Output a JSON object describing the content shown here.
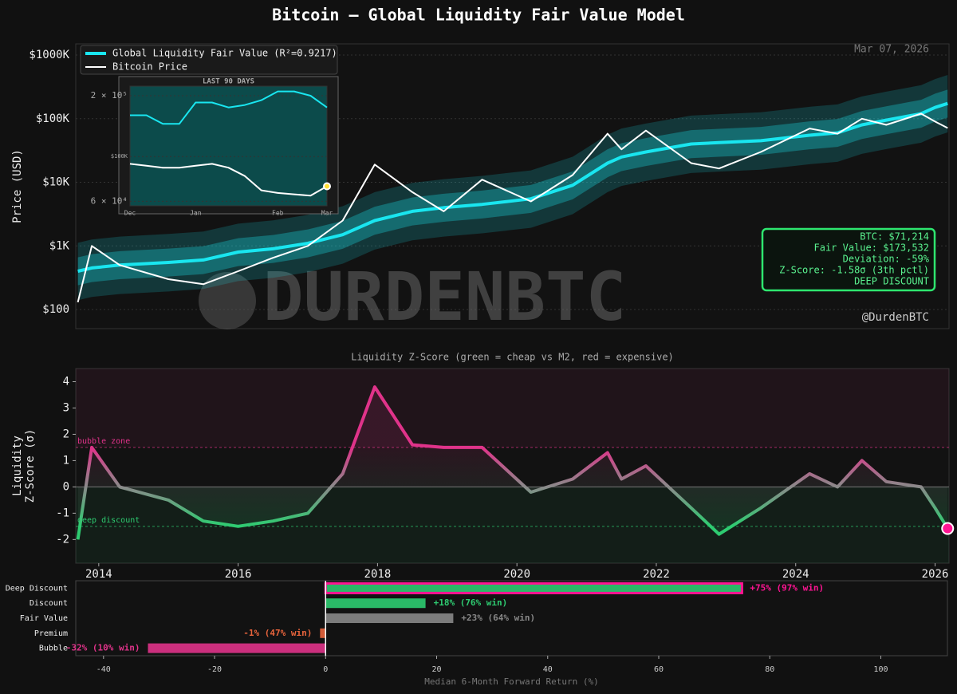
{
  "title": "Bitcoin — Global Liquidity Fair Value Model",
  "annotations": {
    "date": "Mar 07, 2026",
    "watermark": "DURDENBTC",
    "handle": "@DurdenBTC",
    "info_box": [
      "BTC: $71,214",
      "Fair Value: $173,532",
      "Deviation: -59%",
      "Z-Score: -1.58σ  (3th pctl)",
      "DEEP DISCOUNT"
    ]
  },
  "chart_data": [
    {
      "type": "line",
      "log_y": true,
      "ylabel": "Price (USD)",
      "grid": true,
      "bands": true,
      "legend": "upper left",
      "x": [
        2013.7,
        2013.9,
        2014.3,
        2015,
        2015.5,
        2016,
        2016.5,
        2017,
        2017.5,
        2017.96,
        2018.5,
        2018.95,
        2019.5,
        2020.2,
        2020.8,
        2021.3,
        2021.5,
        2021.85,
        2022.5,
        2022.9,
        2023.5,
        2024.2,
        2024.6,
        2024.95,
        2025.3,
        2025.8,
        2026,
        2026.18
      ],
      "xlim": [
        2013.67,
        2026.2
      ],
      "ylim": [
        50,
        1500000
      ],
      "yticks": [
        {
          "value": 100,
          "label": "$100"
        },
        {
          "value": 1000,
          "label": "$1K"
        },
        {
          "value": 10000,
          "label": "$10K"
        },
        {
          "value": 100000,
          "label": "$100K"
        },
        {
          "value": 1000000,
          "label": "$1000K"
        }
      ],
      "series": [
        {
          "name": "Global Liquidity Fair Value (R²=0.9217)",
          "color": "#19e6f0",
          "values": [
            400,
            450,
            500,
            550,
            600,
            800,
            900,
            1100,
            1500,
            2500,
            3500,
            4000,
            4500,
            5500,
            9000,
            20000,
            25000,
            30000,
            40000,
            42000,
            45000,
            55000,
            60000,
            80000,
            95000,
            120000,
            150000,
            173532
          ]
        },
        {
          "name": "Bitcoin Price",
          "color": "#ffffff",
          "values": [
            130,
            1000,
            500,
            300,
            250,
            400,
            650,
            1000,
            2500,
            19000,
            7000,
            3500,
            11000,
            5000,
            13000,
            58000,
            33000,
            65000,
            20000,
            16500,
            30000,
            70000,
            58000,
            100000,
            80000,
            120000,
            90000,
            71214
          ]
        }
      ]
    },
    {
      "type": "line",
      "title": "Liquidity Z-Score  (green = cheap vs M2, red = expensive)",
      "ylabel": [
        "Liquidity",
        "Z-Score (σ)"
      ],
      "x": [
        2013.7,
        2013.9,
        2014.3,
        2015,
        2015.5,
        2016,
        2016.5,
        2017,
        2017.5,
        2017.96,
        2018.5,
        2018.95,
        2019.5,
        2020.2,
        2020.8,
        2021.3,
        2021.5,
        2021.85,
        2022.5,
        2022.9,
        2023.5,
        2024.2,
        2024.6,
        2024.95,
        2025.3,
        2025.8,
        2026,
        2026.18
      ],
      "xlim": [
        2013.67,
        2026.2
      ],
      "ylim": [
        -2.9,
        4.5
      ],
      "xticks": [
        2014,
        2016,
        2018,
        2020,
        2022,
        2024,
        2026
      ],
      "yticks": [
        -2,
        -1,
        0,
        1,
        2,
        3,
        4
      ],
      "thresholds": [
        {
          "value": 1.5,
          "label": "bubble zone",
          "color": "#e0338a"
        },
        {
          "value": -1.5,
          "label": "deep discount",
          "color": "#2ecc71"
        }
      ],
      "marker_last": true,
      "series": [
        {
          "name": "Liquidity Z-Score",
          "color": "#ff1493",
          "values": [
            -2,
            1.5,
            0,
            -0.5,
            -1.3,
            -1.5,
            -1.3,
            -1,
            0.5,
            3.8,
            1.6,
            1.5,
            1.5,
            -0.2,
            0.3,
            1.3,
            0.3,
            0.8,
            -0.8,
            -1.8,
            -0.8,
            0.5,
            0,
            1,
            0.2,
            0,
            -0.8,
            -1.58
          ]
        }
      ]
    },
    {
      "type": "hbar",
      "xlabel": "Median 6-Month Forward Return (%)",
      "categories": [
        "Deep Discount",
        "Discount",
        "Fair Value",
        "Premium",
        "Bubble"
      ],
      "values": [
        75,
        18,
        23,
        -1,
        -32
      ],
      "value_labels": [
        "+75%  (97% win)",
        "+18%  (76% win)",
        "+23%  (64% win)",
        "-1%  (47% win)",
        "-32%  (10% win)"
      ],
      "colors": [
        "#ff1493",
        "#2ecc71",
        "#888888",
        "#e8643c",
        "#e0338a"
      ],
      "xlim": [
        -45,
        112
      ],
      "xticks": [
        -40,
        -20,
        0,
        20,
        40,
        60,
        80,
        100
      ]
    },
    {
      "type": "line",
      "log_y": true,
      "title": "LAST 90 DAYS",
      "grid": true,
      "marker_last": true,
      "categories": [
        "Dec",
        null,
        null,
        null,
        "Jan",
        null,
        null,
        null,
        null,
        "Feb",
        null,
        null,
        "Mar"
      ],
      "ylim": [
        57000,
        223000
      ],
      "yticks": [
        {
          "value": 200000,
          "label": "2 × 10⁵"
        },
        {
          "value": 100000,
          "label": "$100K"
        },
        {
          "value": 60000,
          "label": "6 × 10⁴"
        }
      ],
      "series": [
        {
          "name": "Fair Value",
          "color": "#19e6f0",
          "values": [
            160000,
            160000,
            145000,
            145000,
            185000,
            185000,
            175000,
            180000,
            190000,
            210000,
            210000,
            200000,
            175000
          ]
        },
        {
          "name": "Price",
          "color": "#ffffff",
          "values": [
            92000,
            90000,
            88000,
            88000,
            90000,
            92000,
            88000,
            80000,
            68000,
            66000,
            65000,
            64000,
            71214
          ]
        }
      ]
    }
  ]
}
